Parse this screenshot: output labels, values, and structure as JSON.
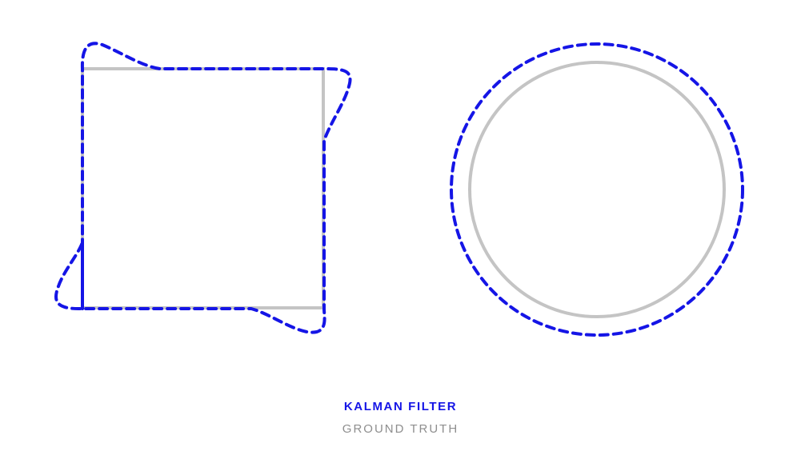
{
  "legend": {
    "kalman_label": "KALMAN FILTER",
    "truth_label": "GROUND TRUTH"
  },
  "colors": {
    "kalman": "#1515e6",
    "truth": "#c4c4c4",
    "background": "#ffffff"
  },
  "shapes": {
    "left": "square",
    "right": "circle"
  },
  "styles": {
    "kalman_line": "dashed",
    "truth_line": "solid"
  }
}
